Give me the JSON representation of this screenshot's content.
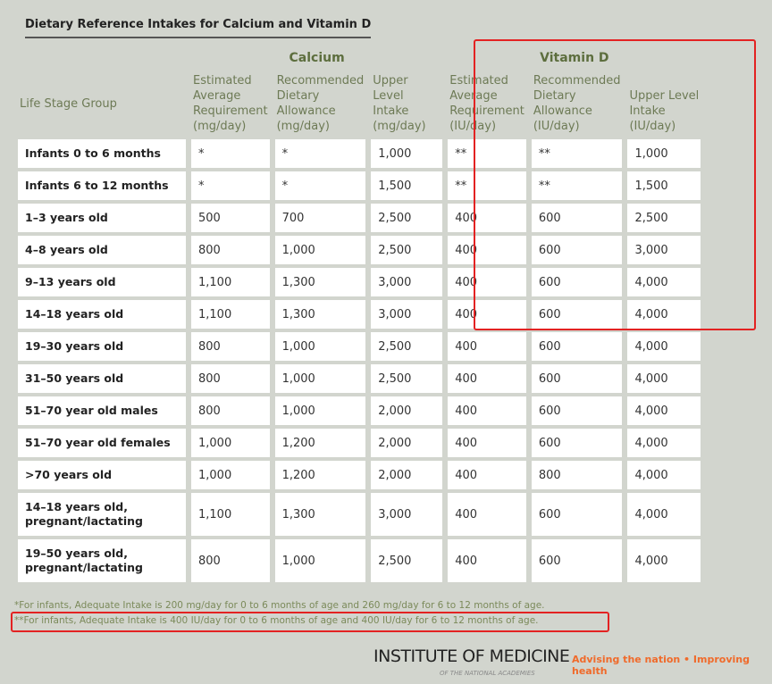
{
  "title": "Dietary Reference Intakes for Calcium and Vitamin D",
  "groups": {
    "calcium": "Calcium",
    "vitamin_d": "Vitamin D"
  },
  "columns": [
    "Life Stage Group",
    "Estimated Average Requirement (mg/day)",
    "Recommended Dietary Allowance (mg/day)",
    "Upper Level Intake (mg/day)",
    "Estimated Average Requirement (IU/day)",
    "Recommended Dietary Allowance (IU/day)",
    "Upper Level Intake (IU/day)"
  ],
  "rows": [
    [
      "Infants 0 to 6 months",
      "*",
      "*",
      "1,000",
      "**",
      "**",
      "1,000"
    ],
    [
      "Infants 6 to 12 months",
      "*",
      "*",
      "1,500",
      "**",
      "**",
      "1,500"
    ],
    [
      "1–3 years old",
      "500",
      "700",
      "2,500",
      "400",
      "600",
      "2,500"
    ],
    [
      "4–8 years old",
      "800",
      "1,000",
      "2,500",
      "400",
      "600",
      "3,000"
    ],
    [
      "9–13 years old",
      "1,100",
      "1,300",
      "3,000",
      "400",
      "600",
      "4,000"
    ],
    [
      "14–18 years old",
      "1,100",
      "1,300",
      "3,000",
      "400",
      "600",
      "4,000"
    ],
    [
      "19–30 years old",
      "800",
      "1,000",
      "2,500",
      "400",
      "600",
      "4,000"
    ],
    [
      "31–50 years old",
      "800",
      "1,000",
      "2,500",
      "400",
      "600",
      "4,000"
    ],
    [
      "51–70 year old males",
      "800",
      "1,000",
      "2,000",
      "400",
      "600",
      "4,000"
    ],
    [
      "51–70 year old females",
      "1,000",
      "1,200",
      "2,000",
      "400",
      "600",
      "4,000"
    ],
    [
      ">70 years old",
      "1,000",
      "1,200",
      "2,000",
      "400",
      "800",
      "4,000"
    ],
    [
      "14–18 years old, pregnant/lactating",
      "1,100",
      "1,300",
      "3,000",
      "400",
      "600",
      "4,000"
    ],
    [
      "19–50 years old, pregnant/lactating",
      "800",
      "1,000",
      "2,500",
      "400",
      "600",
      "4,000"
    ]
  ],
  "footnotes": [
    "*For infants, Adequate Intake is 200 mg/day for 0 to 6 months of age and 260 mg/day for 6 to 12 months of age.",
    "**For infants, Adequate Intake is 400 IU/day for 0 to 6 months of age and 400 IU/day for 6 to 12 months of age."
  ],
  "footer": {
    "org": "INSTITUTE OF MEDICINE",
    "org_sub": "OF THE NATIONAL ACADEMIES",
    "tagline": "Advising the nation • Improving health"
  },
  "colors": {
    "highlight": "#e32222",
    "header_text": "#6d7a55",
    "tagline": "#f06a2a"
  }
}
